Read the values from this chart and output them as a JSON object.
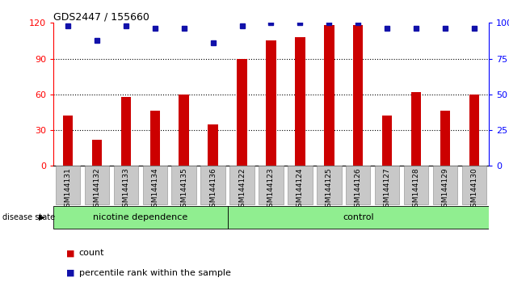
{
  "title": "GDS2447 / 155660",
  "samples": [
    "GSM144131",
    "GSM144132",
    "GSM144133",
    "GSM144134",
    "GSM144135",
    "GSM144136",
    "GSM144122",
    "GSM144123",
    "GSM144124",
    "GSM144125",
    "GSM144126",
    "GSM144127",
    "GSM144128",
    "GSM144129",
    "GSM144130"
  ],
  "counts": [
    42,
    22,
    58,
    46,
    60,
    35,
    90,
    105,
    108,
    118,
    118,
    42,
    62,
    46,
    60
  ],
  "percentiles": [
    98,
    88,
    98,
    96,
    96,
    86,
    98,
    100,
    100,
    100,
    100,
    96,
    96,
    96,
    96
  ],
  "nicotine_count": 6,
  "control_count": 9,
  "bar_color": "#CC0000",
  "dot_color": "#1111AA",
  "bg_color": "#FFFFFF",
  "plot_bg": "#FFFFFF",
  "left_ylim": [
    0,
    120
  ],
  "right_ylim": [
    0,
    100
  ],
  "left_yticks": [
    0,
    30,
    60,
    90,
    120
  ],
  "right_yticks": [
    0,
    25,
    50,
    75,
    100
  ],
  "grid_lines": [
    30,
    60,
    90
  ],
  "legend_count": "count",
  "legend_percentile": "percentile rank within the sample",
  "disease_state_label": "disease state",
  "group_color": "#90EE90",
  "bar_width": 0.35
}
